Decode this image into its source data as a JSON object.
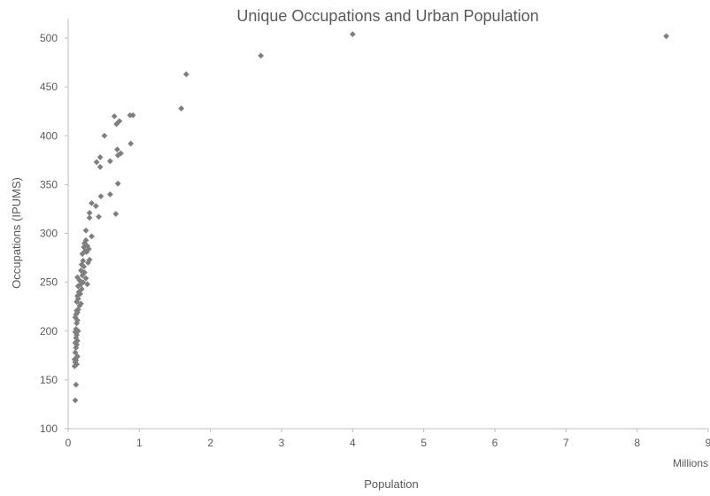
{
  "chart_data": {
    "type": "scatter",
    "title": "Unique Occupations and Urban Population",
    "xlabel": "Population",
    "ylabel": "Occupations (IPUMS)",
    "x_unit_label": "Millions",
    "xlim": [
      0,
      9
    ],
    "ylim": [
      100,
      520
    ],
    "x_ticks": [
      0,
      1,
      2,
      3,
      4,
      5,
      6,
      7,
      8,
      9
    ],
    "y_ticks": [
      100,
      150,
      200,
      250,
      300,
      350,
      400,
      450,
      500
    ],
    "grid": false,
    "legend": "none",
    "marker": "diamond",
    "colors": {
      "marker": "#7f7f7f",
      "axis": "#bfbfbf",
      "text": "#595959",
      "title": "#595959"
    },
    "points": [
      {
        "x": 0.1,
        "y": 129
      },
      {
        "x": 0.11,
        "y": 145
      },
      {
        "x": 0.09,
        "y": 164
      },
      {
        "x": 0.1,
        "y": 168
      },
      {
        "x": 0.12,
        "y": 166
      },
      {
        "x": 0.11,
        "y": 170
      },
      {
        "x": 0.09,
        "y": 171
      },
      {
        "x": 0.13,
        "y": 174
      },
      {
        "x": 0.1,
        "y": 178
      },
      {
        "x": 0.11,
        "y": 183
      },
      {
        "x": 0.12,
        "y": 186
      },
      {
        "x": 0.1,
        "y": 188
      },
      {
        "x": 0.13,
        "y": 190
      },
      {
        "x": 0.11,
        "y": 193
      },
      {
        "x": 0.12,
        "y": 196
      },
      {
        "x": 0.1,
        "y": 199
      },
      {
        "x": 0.14,
        "y": 200
      },
      {
        "x": 0.11,
        "y": 202
      },
      {
        "x": 0.12,
        "y": 208
      },
      {
        "x": 0.13,
        "y": 211
      },
      {
        "x": 0.1,
        "y": 214
      },
      {
        "x": 0.11,
        "y": 217
      },
      {
        "x": 0.13,
        "y": 219
      },
      {
        "x": 0.12,
        "y": 221
      },
      {
        "x": 0.14,
        "y": 222
      },
      {
        "x": 0.16,
        "y": 226
      },
      {
        "x": 0.18,
        "y": 228
      },
      {
        "x": 0.12,
        "y": 230
      },
      {
        "x": 0.14,
        "y": 233
      },
      {
        "x": 0.13,
        "y": 236
      },
      {
        "x": 0.17,
        "y": 238
      },
      {
        "x": 0.15,
        "y": 240
      },
      {
        "x": 0.19,
        "y": 243
      },
      {
        "x": 0.14,
        "y": 246
      },
      {
        "x": 0.18,
        "y": 248
      },
      {
        "x": 0.27,
        "y": 248
      },
      {
        "x": 0.21,
        "y": 250
      },
      {
        "x": 0.16,
        "y": 252
      },
      {
        "x": 0.25,
        "y": 254
      },
      {
        "x": 0.13,
        "y": 255
      },
      {
        "x": 0.2,
        "y": 257
      },
      {
        "x": 0.23,
        "y": 260
      },
      {
        "x": 0.18,
        "y": 262
      },
      {
        "x": 0.22,
        "y": 266
      },
      {
        "x": 0.19,
        "y": 268
      },
      {
        "x": 0.28,
        "y": 270
      },
      {
        "x": 0.3,
        "y": 273
      },
      {
        "x": 0.21,
        "y": 272
      },
      {
        "x": 0.2,
        "y": 279
      },
      {
        "x": 0.26,
        "y": 281
      },
      {
        "x": 0.24,
        "y": 282
      },
      {
        "x": 0.29,
        "y": 284
      },
      {
        "x": 0.22,
        "y": 286
      },
      {
        "x": 0.27,
        "y": 287
      },
      {
        "x": 0.23,
        "y": 290
      },
      {
        "x": 0.25,
        "y": 293
      },
      {
        "x": 0.33,
        "y": 297
      },
      {
        "x": 0.25,
        "y": 303
      },
      {
        "x": 0.3,
        "y": 316
      },
      {
        "x": 0.3,
        "y": 321
      },
      {
        "x": 0.43,
        "y": 317
      },
      {
        "x": 0.67,
        "y": 320
      },
      {
        "x": 0.39,
        "y": 328
      },
      {
        "x": 0.33,
        "y": 331
      },
      {
        "x": 0.46,
        "y": 338
      },
      {
        "x": 0.59,
        "y": 340
      },
      {
        "x": 0.7,
        "y": 351
      },
      {
        "x": 0.45,
        "y": 368
      },
      {
        "x": 0.4,
        "y": 373
      },
      {
        "x": 0.59,
        "y": 374
      },
      {
        "x": 0.45,
        "y": 378
      },
      {
        "x": 0.7,
        "y": 380
      },
      {
        "x": 0.74,
        "y": 382
      },
      {
        "x": 0.69,
        "y": 386
      },
      {
        "x": 0.88,
        "y": 392
      },
      {
        "x": 0.51,
        "y": 400
      },
      {
        "x": 0.68,
        "y": 412
      },
      {
        "x": 0.72,
        "y": 415
      },
      {
        "x": 0.65,
        "y": 420
      },
      {
        "x": 0.87,
        "y": 421
      },
      {
        "x": 0.91,
        "y": 421
      },
      {
        "x": 1.59,
        "y": 428
      },
      {
        "x": 1.66,
        "y": 463
      },
      {
        "x": 2.71,
        "y": 482
      },
      {
        "x": 4.0,
        "y": 504
      },
      {
        "x": 8.41,
        "y": 502
      }
    ]
  }
}
